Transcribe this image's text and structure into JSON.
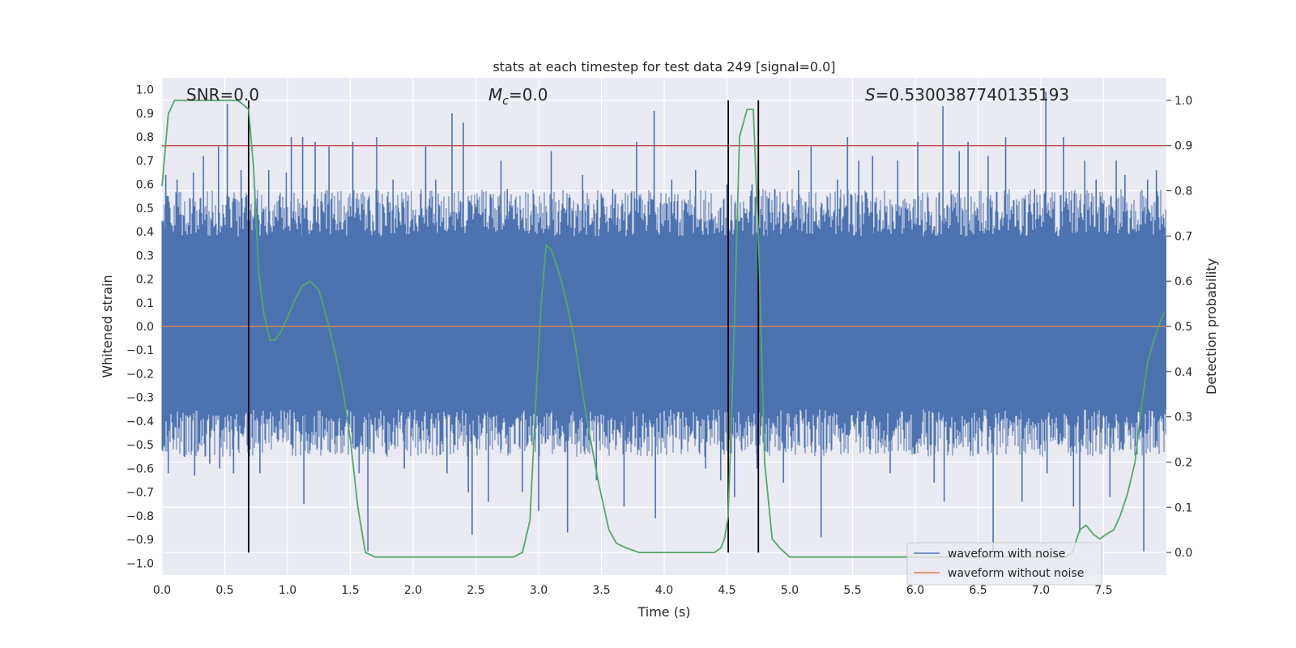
{
  "chart_data": {
    "type": "line",
    "title": "stats at each timestep for test data 249 [signal=0.0]",
    "xlabel": "Time (s)",
    "ylabel": "Whitened strain",
    "y2label": "Detection probability",
    "xlim": [
      0.0,
      8.0
    ],
    "ylim": [
      -1.05,
      1.05
    ],
    "y2lim": [
      -0.05,
      1.05
    ],
    "x_ticks": [
      0.0,
      0.5,
      1.0,
      1.5,
      2.0,
      2.5,
      3.0,
      3.5,
      4.0,
      4.5,
      5.0,
      5.5,
      6.0,
      6.5,
      7.0,
      7.5
    ],
    "x_tick_labels": [
      "0.0",
      "0.5",
      "1.0",
      "1.5",
      "2.0",
      "2.5",
      "3.0",
      "3.5",
      "4.0",
      "4.5",
      "5.0",
      "5.5",
      "6.0",
      "6.5",
      "7.0",
      "7.5"
    ],
    "y_ticks": [
      1.0,
      0.9,
      0.8,
      0.7,
      0.6,
      0.5,
      0.4,
      0.3,
      0.2,
      0.1,
      0.0,
      -0.1,
      -0.2,
      -0.3,
      -0.4,
      -0.5,
      -0.6,
      -0.7,
      -0.8,
      -0.9,
      -1.0
    ],
    "y_tick_labels": [
      "1.0",
      "0.9",
      "0.8",
      "0.7",
      "0.6",
      "0.5",
      "0.4",
      "0.3",
      "0.2",
      "0.1",
      "0.0",
      "−0.1",
      "−0.2",
      "−0.3",
      "−0.4",
      "−0.5",
      "−0.6",
      "−0.7",
      "−0.8",
      "−0.9",
      "−1.0"
    ],
    "y2_ticks": [
      1.0,
      0.9,
      0.8,
      0.7,
      0.6,
      0.5,
      0.4,
      0.3,
      0.2,
      0.1,
      0.0
    ],
    "y2_tick_labels": [
      "1.0",
      "0.9",
      "0.8",
      "0.7",
      "0.6",
      "0.5",
      "0.4",
      "0.3",
      "0.2",
      "0.1",
      "0.0"
    ],
    "grid": true,
    "legend_position": "bottom-right",
    "annotations": {
      "snr": "SNR=0.0",
      "mc_symbol": "M",
      "mc_sub": "c",
      "mc_value": "=0.0",
      "s_symbol": "S",
      "s_value": "=0.5300387740135193"
    },
    "threshold": {
      "y2": 0.9,
      "color": "#c44e52"
    },
    "vertical_lines": [
      0.69,
      4.51,
      4.75
    ],
    "vertical_line_range_y2": [
      0.0,
      1.0
    ],
    "series": [
      {
        "name": "waveform with noise",
        "color": "#4c72b0",
        "noise_description": "dense noise band",
        "core_band": [
          -0.35,
          0.38
        ],
        "spikes": [
          [
            0.03,
            0.64
          ],
          [
            0.05,
            -0.62
          ],
          [
            0.12,
            0.62
          ],
          [
            0.18,
            -0.55
          ],
          [
            0.25,
            0.65
          ],
          [
            0.26,
            -0.63
          ],
          [
            0.33,
            0.72
          ],
          [
            0.38,
            -0.58
          ],
          [
            0.45,
            0.76
          ],
          [
            0.46,
            -0.6
          ],
          [
            0.52,
            0.94
          ],
          [
            0.57,
            -0.62
          ],
          [
            0.63,
            0.66
          ],
          [
            0.69,
            -0.66
          ],
          [
            0.74,
            0.58
          ],
          [
            0.78,
            -0.62
          ],
          [
            0.85,
            0.66
          ],
          [
            0.9,
            -0.45
          ],
          [
            0.99,
            0.65
          ],
          [
            1.03,
            0.8
          ],
          [
            1.12,
            0.8
          ],
          [
            1.13,
            -0.75
          ],
          [
            1.22,
            0.78
          ],
          [
            1.33,
            0.76
          ],
          [
            1.4,
            -0.46
          ],
          [
            1.52,
            0.78
          ],
          [
            1.57,
            -0.62
          ],
          [
            1.64,
            -0.95
          ],
          [
            1.71,
            0.8
          ],
          [
            1.84,
            0.62
          ],
          [
            1.93,
            -0.6
          ],
          [
            2.1,
            0.76
          ],
          [
            2.18,
            0.62
          ],
          [
            2.27,
            -0.62
          ],
          [
            2.31,
            0.9
          ],
          [
            2.4,
            0.86
          ],
          [
            2.44,
            -0.7
          ],
          [
            2.47,
            -0.88
          ],
          [
            2.6,
            -0.74
          ],
          [
            2.7,
            0.7
          ],
          [
            2.75,
            0.58
          ],
          [
            2.87,
            -0.7
          ],
          [
            3.0,
            -0.78
          ],
          [
            3.1,
            0.74
          ],
          [
            3.23,
            -0.87
          ],
          [
            3.35,
            0.64
          ],
          [
            3.46,
            -0.65
          ],
          [
            3.59,
            0.58
          ],
          [
            3.68,
            -0.76
          ],
          [
            3.78,
            0.78
          ],
          [
            3.92,
            0.91
          ],
          [
            3.93,
            -0.81
          ],
          [
            4.06,
            0.62
          ],
          [
            4.25,
            0.66
          ],
          [
            4.33,
            -0.6
          ],
          [
            4.45,
            -0.65
          ],
          [
            4.5,
            0.6
          ],
          [
            4.56,
            -0.72
          ],
          [
            4.7,
            0.6
          ],
          [
            4.74,
            -0.6
          ],
          [
            4.83,
            0.54
          ],
          [
            4.88,
            0.58
          ],
          [
            4.95,
            -0.66
          ],
          [
            5.07,
            0.66
          ],
          [
            5.17,
            0.76
          ],
          [
            5.25,
            -0.89
          ],
          [
            5.38,
            0.62
          ],
          [
            5.46,
            0.8
          ],
          [
            5.55,
            0.7
          ],
          [
            5.66,
            0.72
          ],
          [
            5.8,
            -0.62
          ],
          [
            5.86,
            0.7
          ],
          [
            6.02,
            0.78
          ],
          [
            6.15,
            -0.66
          ],
          [
            6.22,
            0.93
          ],
          [
            6.23,
            -0.74
          ],
          [
            6.35,
            0.74
          ],
          [
            6.42,
            0.78
          ],
          [
            6.58,
            0.72
          ],
          [
            6.62,
            -0.95
          ],
          [
            6.72,
            0.8
          ],
          [
            6.85,
            -0.74
          ],
          [
            6.95,
            0.58
          ],
          [
            7.04,
            0.99
          ],
          [
            7.05,
            -0.62
          ],
          [
            7.18,
            0.8
          ],
          [
            7.26,
            -0.76
          ],
          [
            7.31,
            -0.87
          ],
          [
            7.35,
            0.7
          ],
          [
            7.44,
            0.62
          ],
          [
            7.55,
            -0.72
          ],
          [
            7.6,
            0.7
          ],
          [
            7.67,
            0.64
          ],
          [
            7.82,
            -0.95
          ],
          [
            7.85,
            0.62
          ],
          [
            7.92,
            0.66
          ]
        ]
      },
      {
        "name": "waveform without noise",
        "color": "#dd8452",
        "x": [
          0.0,
          8.0
        ],
        "y": [
          0.0,
          0.0
        ]
      },
      {
        "name": "Detection probability",
        "color": "#55a868",
        "axis": "right",
        "x": [
          0.0,
          0.05,
          0.1,
          0.15,
          0.2,
          0.3,
          0.4,
          0.5,
          0.6,
          0.65,
          0.69,
          0.73,
          0.77,
          0.81,
          0.86,
          0.9,
          0.95,
          1.0,
          1.06,
          1.12,
          1.18,
          1.25,
          1.32,
          1.38,
          1.44,
          1.5,
          1.56,
          1.62,
          1.7,
          1.8,
          1.9,
          2.0,
          2.2,
          2.4,
          2.6,
          2.8,
          2.87,
          2.93,
          2.98,
          3.02,
          3.06,
          3.1,
          3.15,
          3.2,
          3.28,
          3.38,
          3.48,
          3.56,
          3.62,
          3.7,
          3.8,
          4.0,
          4.2,
          4.4,
          4.45,
          4.48,
          4.51,
          4.55,
          4.6,
          4.66,
          4.71,
          4.75,
          4.8,
          4.86,
          4.92,
          5.0,
          5.2,
          5.5,
          6.0,
          6.5,
          7.0,
          7.2,
          7.25,
          7.31,
          7.36,
          7.42,
          7.47,
          7.52,
          7.58,
          7.63,
          7.69,
          7.75,
          7.8,
          7.85,
          7.9,
          7.95,
          7.98
        ],
        "y": [
          0.81,
          0.97,
          1.0,
          1.0,
          1.0,
          1.0,
          1.0,
          1.0,
          1.0,
          0.99,
          0.98,
          0.85,
          0.62,
          0.53,
          0.47,
          0.47,
          0.49,
          0.52,
          0.56,
          0.59,
          0.6,
          0.58,
          0.51,
          0.44,
          0.36,
          0.25,
          0.1,
          0.0,
          -0.01,
          -0.01,
          -0.01,
          -0.01,
          -0.01,
          -0.01,
          -0.01,
          -0.01,
          0.0,
          0.07,
          0.35,
          0.55,
          0.68,
          0.67,
          0.63,
          0.58,
          0.48,
          0.3,
          0.15,
          0.05,
          0.02,
          0.01,
          0.0,
          0.0,
          0.0,
          0.0,
          0.01,
          0.03,
          0.08,
          0.42,
          0.92,
          0.98,
          0.98,
          0.7,
          0.2,
          0.03,
          0.01,
          -0.01,
          -0.01,
          -0.01,
          -0.01,
          -0.01,
          -0.01,
          -0.01,
          0.0,
          0.05,
          0.06,
          0.04,
          0.03,
          0.04,
          0.05,
          0.08,
          0.13,
          0.2,
          0.32,
          0.42,
          0.47,
          0.51,
          0.53
        ]
      }
    ]
  }
}
